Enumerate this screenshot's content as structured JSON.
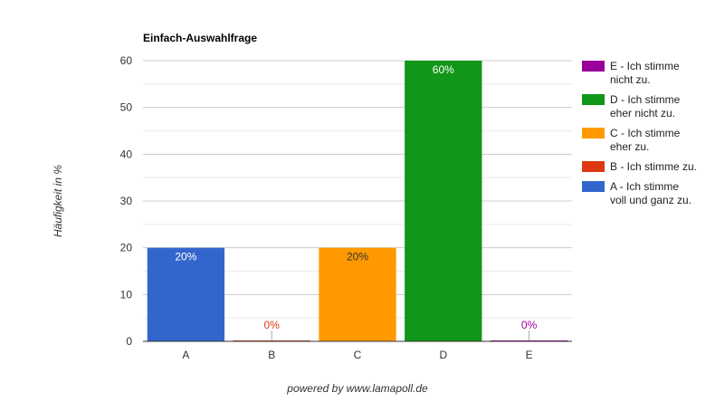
{
  "chart_data": {
    "type": "bar",
    "title": "Einfach-Auswahlfrage",
    "ylabel": "Häufigkeit in %",
    "xlabel": "",
    "categories": [
      "A",
      "B",
      "C",
      "D",
      "E"
    ],
    "values": [
      20,
      0,
      20,
      60,
      0
    ],
    "value_labels": [
      "20%",
      "0%",
      "20%",
      "60%",
      "0%"
    ],
    "colors": [
      "#3366cc",
      "#dc3912",
      "#ff9900",
      "#109618",
      "#990099"
    ],
    "ylim": [
      0,
      60
    ],
    "yticks": [
      0,
      10,
      20,
      30,
      40,
      50,
      60
    ],
    "grid": true,
    "legend_position": "right",
    "legend": [
      {
        "lines": [
          "E - Ich stimme",
          "nicht zu."
        ],
        "color": "#990099"
      },
      {
        "lines": [
          "D - Ich stimme",
          "eher nicht zu."
        ],
        "color": "#109618"
      },
      {
        "lines": [
          "C - Ich stimme",
          "eher zu."
        ],
        "color": "#ff9900"
      },
      {
        "lines": [
          "B - Ich stimme zu."
        ],
        "color": "#dc3912"
      },
      {
        "lines": [
          "A - Ich stimme",
          "voll und ganz zu."
        ],
        "color": "#3366cc"
      }
    ]
  },
  "footer": "powered by www.lamapoll.de"
}
